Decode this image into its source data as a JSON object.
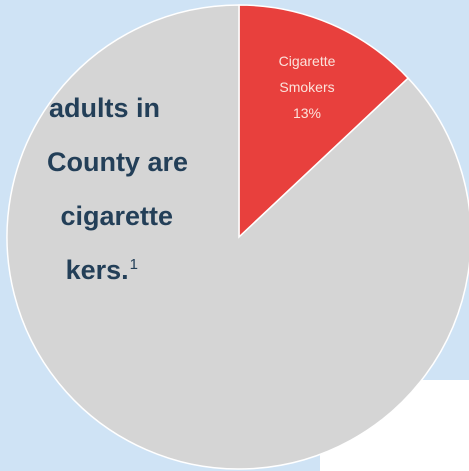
{
  "colors": {
    "background": "#cfe3f5",
    "white_panel": "#ffffff",
    "smokers": "#e8403d",
    "non_smokers": "#d5d5d5",
    "caption_text": "#233f58",
    "slice_label_text": "#fbe3dc"
  },
  "caption": {
    "line1": "adults in",
    "line2": "County are",
    "line3": "cigarette",
    "line4": "kers.",
    "footnote": "1"
  },
  "chart_data": {
    "type": "pie",
    "title": "",
    "slices": [
      {
        "name": "Cigarette Smokers",
        "label_line1": "Cigarette",
        "label_line2": "Smokers",
        "value_label": "13%",
        "value": 13,
        "color": "#e8403d"
      },
      {
        "name": "",
        "value": 87,
        "color": "#d5d5d5"
      }
    ],
    "start_angle_deg": 0,
    "direction": "clockwise"
  }
}
